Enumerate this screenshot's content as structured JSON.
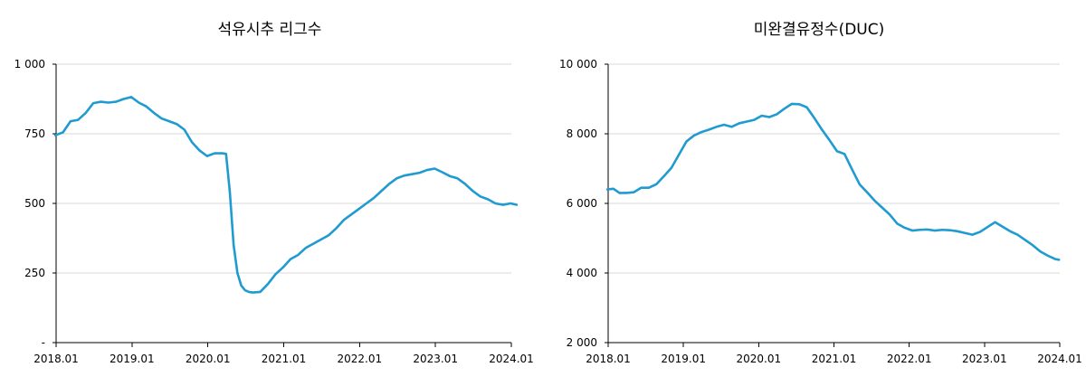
{
  "chart_data": [
    {
      "type": "line",
      "title": "석유시추 리그수",
      "xlabel": "",
      "ylabel": "",
      "xlim": [
        "2018.01",
        "2024.01"
      ],
      "ylim": [
        0,
        1000
      ],
      "grid": true,
      "line_color": "#1f9bd1",
      "x_tick_labels": [
        "2018.01",
        "2019.01",
        "2020.01",
        "2021.01",
        "2022.01",
        "2023.01",
        "2024.01"
      ],
      "y_tick_labels": [
        "-",
        "250",
        "500",
        "750",
        "1 000"
      ],
      "y_tick_values": [
        0,
        250,
        500,
        750,
        1000
      ],
      "series": [
        {
          "x": [
            2018.0,
            2018.1,
            2018.2,
            2018.3,
            2018.4,
            2018.5,
            2018.6,
            2018.7,
            2018.8,
            2018.9,
            2019.0,
            2019.1,
            2019.2,
            2019.3,
            2019.4,
            2019.5,
            2019.6,
            2019.7,
            2019.8,
            2019.9,
            2020.0,
            2020.1,
            2020.2,
            2020.25,
            2020.3,
            2020.35,
            2020.4,
            2020.45,
            2020.5,
            2020.55,
            2020.6,
            2020.7,
            2020.8,
            2020.9,
            2021.0,
            2021.1,
            2021.2,
            2021.3,
            2021.4,
            2021.5,
            2021.6,
            2021.7,
            2021.8,
            2021.9,
            2022.0,
            2022.1,
            2022.2,
            2022.3,
            2022.4,
            2022.5,
            2022.6,
            2022.7,
            2022.8,
            2022.9,
            2023.0,
            2023.1,
            2023.2,
            2023.3,
            2023.4,
            2023.5,
            2023.6,
            2023.7,
            2023.8,
            2023.9,
            2024.0,
            2024.08
          ],
          "values": [
            745,
            755,
            795,
            800,
            825,
            860,
            865,
            862,
            865,
            875,
            882,
            862,
            848,
            825,
            805,
            795,
            785,
            765,
            720,
            690,
            670,
            680,
            680,
            678,
            540,
            350,
            250,
            205,
            188,
            182,
            180,
            182,
            210,
            245,
            270,
            300,
            315,
            340,
            355,
            370,
            385,
            410,
            440,
            460,
            480,
            500,
            520,
            545,
            570,
            590,
            600,
            605,
            610,
            620,
            625,
            612,
            598,
            590,
            570,
            545,
            525,
            515,
            500,
            495,
            500,
            495
          ]
        }
      ]
    },
    {
      "type": "line",
      "title": "미완결유정수(DUC)",
      "xlabel": "",
      "ylabel": "",
      "xlim": [
        "2018.01",
        "2024.01"
      ],
      "ylim": [
        2000,
        10000
      ],
      "grid": true,
      "line_color": "#1f9bd1",
      "x_tick_labels": [
        "2018.01",
        "2019.01",
        "2020.01",
        "2021.01",
        "2022.01",
        "2023.01",
        "2024.01"
      ],
      "y_tick_labels": [
        "2 000",
        "4 000",
        "6 000",
        "8 000",
        "10 000"
      ],
      "y_tick_values": [
        2000,
        4000,
        6000,
        8000,
        10000
      ],
      "series": [
        {
          "x": [
            2018.0,
            2018.08,
            2018.16,
            2018.25,
            2018.35,
            2018.45,
            2018.55,
            2018.65,
            2018.75,
            2018.85,
            2018.95,
            2019.05,
            2019.15,
            2019.25,
            2019.35,
            2019.45,
            2019.55,
            2019.65,
            2019.75,
            2019.85,
            2019.95,
            2020.05,
            2020.15,
            2020.25,
            2020.35,
            2020.45,
            2020.55,
            2020.65,
            2020.75,
            2020.85,
            2020.95,
            2021.05,
            2021.15,
            2021.25,
            2021.35,
            2021.45,
            2021.55,
            2021.65,
            2021.75,
            2021.85,
            2021.95,
            2022.05,
            2022.15,
            2022.25,
            2022.35,
            2022.45,
            2022.55,
            2022.65,
            2022.75,
            2022.85,
            2022.95,
            2023.05,
            2023.15,
            2023.25,
            2023.35,
            2023.45,
            2023.55,
            2023.65,
            2023.75,
            2023.85,
            2023.95,
            2024.0
          ],
          "values": [
            6400,
            6420,
            6300,
            6300,
            6320,
            6450,
            6450,
            6550,
            6780,
            7020,
            7400,
            7780,
            7950,
            8050,
            8120,
            8200,
            8260,
            8200,
            8300,
            8350,
            8400,
            8520,
            8480,
            8560,
            8720,
            8860,
            8850,
            8760,
            8450,
            8120,
            7820,
            7500,
            7420,
            6980,
            6550,
            6320,
            6080,
            5880,
            5680,
            5420,
            5300,
            5220,
            5240,
            5250,
            5220,
            5240,
            5230,
            5200,
            5150,
            5100,
            5180,
            5320,
            5460,
            5330,
            5200,
            5100,
            4950,
            4800,
            4620,
            4500,
            4400,
            4380
          ]
        }
      ]
    }
  ]
}
